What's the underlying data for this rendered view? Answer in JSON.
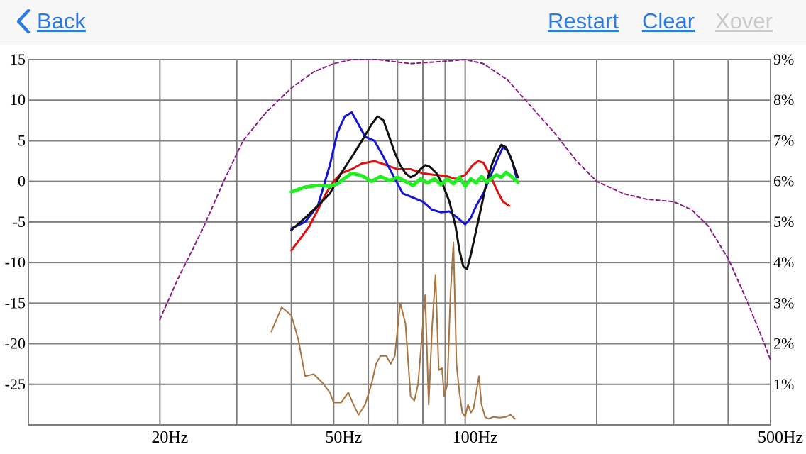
{
  "colors": {
    "nav_link": "#2a7ae2",
    "nav_disabled": "#c9c9c9",
    "grid": "#7f7f7f",
    "series_blue": "#1414d2",
    "series_black": "#111111",
    "series_red": "#e01010",
    "series_green": "#22ee22",
    "series_brown": "#a8733f",
    "series_purple": "#8a1a8a"
  },
  "navbar": {
    "back_label": "Back",
    "back_icon": "chevron-left-icon",
    "restart_label": "Restart",
    "clear_label": "Clear",
    "xover_label": "Xover"
  },
  "chart_data": {
    "type": "line",
    "x_scale": "log",
    "xlim": [
      10,
      500
    ],
    "x_ticks": [
      {
        "value": 20,
        "label": "20Hz"
      },
      {
        "value": 50,
        "label": "50Hz"
      },
      {
        "value": 100,
        "label": "100Hz"
      },
      {
        "value": 500,
        "label": "500Hz"
      }
    ],
    "x_gridlines": [
      20,
      30,
      40,
      50,
      60,
      70,
      80,
      90,
      100,
      200,
      300,
      400,
      500
    ],
    "y_left": {
      "ylim": [
        -30,
        15
      ],
      "ticks": [
        15,
        10,
        5,
        0,
        -5,
        -10,
        -15,
        -20,
        -25
      ]
    },
    "y_right": {
      "ylim": [
        0,
        9
      ],
      "ticks": [
        9,
        8,
        7,
        6,
        5,
        4,
        3,
        2,
        1
      ],
      "tick_labels": [
        "9%",
        "8%",
        "7%",
        "6%",
        "5%",
        "4%",
        "3%",
        "2%",
        "1%"
      ]
    },
    "grid": true,
    "series": [
      {
        "axis": "left",
        "color": "#8a1a8a",
        "dashed": true,
        "width": 2,
        "points": [
          [
            20,
            -17
          ],
          [
            22,
            -12
          ],
          [
            25,
            -6
          ],
          [
            28,
            0
          ],
          [
            31,
            5
          ],
          [
            35,
            8.5
          ],
          [
            40,
            11.5
          ],
          [
            45,
            13.5
          ],
          [
            50,
            14.5
          ],
          [
            55,
            15
          ],
          [
            63,
            15
          ],
          [
            75,
            14.5
          ],
          [
            90,
            14.8
          ],
          [
            100,
            15
          ],
          [
            110,
            14.5
          ],
          [
            125,
            12.5
          ],
          [
            140,
            9.5
          ],
          [
            160,
            6
          ],
          [
            180,
            2.5
          ],
          [
            200,
            0
          ],
          [
            230,
            -1.5
          ],
          [
            260,
            -2.2
          ],
          [
            300,
            -2.5
          ],
          [
            330,
            -3.5
          ],
          [
            360,
            -5.5
          ],
          [
            400,
            -9.5
          ],
          [
            440,
            -14.5
          ],
          [
            480,
            -19.5
          ],
          [
            500,
            -22
          ]
        ]
      },
      {
        "axis": "right",
        "color": "#a8733f",
        "dashed": false,
        "width": 2,
        "points": [
          [
            36,
            2.3
          ],
          [
            38,
            2.9
          ],
          [
            40,
            2.7
          ],
          [
            41.5,
            2.1
          ],
          [
            43,
            1.2
          ],
          [
            45,
            1.25
          ],
          [
            47,
            1.05
          ],
          [
            49,
            0.8
          ],
          [
            50,
            0.55
          ],
          [
            52,
            0.55
          ],
          [
            54,
            0.8
          ],
          [
            55.5,
            0.5
          ],
          [
            57,
            0.25
          ],
          [
            59,
            0.5
          ],
          [
            61,
            1.0
          ],
          [
            62.5,
            1.5
          ],
          [
            64,
            1.7
          ],
          [
            66,
            1.7
          ],
          [
            67.5,
            1.5
          ],
          [
            69,
            1.7
          ],
          [
            71,
            3.0
          ],
          [
            73,
            2.5
          ],
          [
            75,
            0.7
          ],
          [
            76.5,
            0.6
          ],
          [
            78,
            1.0
          ],
          [
            79.5,
            2.1
          ],
          [
            81,
            3.2
          ],
          [
            82.5,
            0.5
          ],
          [
            84,
            2.4
          ],
          [
            85.5,
            3.7
          ],
          [
            87,
            1.35
          ],
          [
            88.5,
            1.4
          ],
          [
            89.5,
            0.7
          ],
          [
            91,
            1.0
          ],
          [
            92.5,
            3.2
          ],
          [
            94,
            4.5
          ],
          [
            95.5,
            1.5
          ],
          [
            97,
            0.8
          ],
          [
            98.5,
            0.3
          ],
          [
            100,
            0.2
          ],
          [
            101.5,
            0.5
          ],
          [
            103,
            0.3
          ],
          [
            104.5,
            0.4
          ],
          [
            106,
            0.8
          ],
          [
            107.5,
            1.2
          ],
          [
            109,
            0.5
          ],
          [
            111,
            0.2
          ],
          [
            113,
            0.15
          ],
          [
            116,
            0.2
          ],
          [
            120,
            0.18
          ],
          [
            124,
            0.2
          ],
          [
            127,
            0.25
          ],
          [
            130,
            0.15
          ]
        ]
      },
      {
        "axis": "left",
        "color": "#e01010",
        "dashed": false,
        "width": 3,
        "points": [
          [
            40,
            -8.5
          ],
          [
            42,
            -7
          ],
          [
            44,
            -5.5
          ],
          [
            46,
            -3.5
          ],
          [
            48,
            -1.5
          ],
          [
            50,
            0
          ],
          [
            52,
            1
          ],
          [
            55,
            1.5
          ],
          [
            58,
            2.2
          ],
          [
            62,
            2.5
          ],
          [
            66,
            2
          ],
          [
            70,
            1.5
          ],
          [
            75,
            1.5
          ],
          [
            80,
            1
          ],
          [
            85,
            0.8
          ],
          [
            90,
            0.7
          ],
          [
            95,
            0.3
          ],
          [
            100,
            0.8
          ],
          [
            104,
            2
          ],
          [
            107,
            2.5
          ],
          [
            110,
            2.3
          ],
          [
            114,
            0.8
          ],
          [
            118,
            -1
          ],
          [
            122,
            -2.5
          ],
          [
            126,
            -3
          ]
        ]
      },
      {
        "axis": "left",
        "color": "#1414d2",
        "dashed": false,
        "width": 3,
        "points": [
          [
            40,
            -5.8
          ],
          [
            43,
            -5
          ],
          [
            46,
            -3
          ],
          [
            49,
            2
          ],
          [
            51,
            6
          ],
          [
            53,
            8
          ],
          [
            55,
            8.5
          ],
          [
            57,
            7
          ],
          [
            59,
            5.5
          ],
          [
            62,
            5
          ],
          [
            65,
            3
          ],
          [
            68,
            1
          ],
          [
            72,
            -1.5
          ],
          [
            76,
            -2
          ],
          [
            80,
            -2.5
          ],
          [
            84,
            -3.5
          ],
          [
            88,
            -3.8
          ],
          [
            92,
            -3.7
          ],
          [
            96,
            -4.5
          ],
          [
            100,
            -5.3
          ],
          [
            103,
            -4.5
          ],
          [
            106,
            -3
          ],
          [
            110,
            -1.5
          ],
          [
            114,
            0.5
          ],
          [
            118,
            2.5
          ],
          [
            122,
            4.2
          ],
          [
            125,
            3.8
          ],
          [
            128,
            2.5
          ],
          [
            131,
            0.5
          ]
        ]
      },
      {
        "axis": "left",
        "color": "#111111",
        "dashed": false,
        "width": 3,
        "points": [
          [
            40,
            -6
          ],
          [
            43,
            -4.5
          ],
          [
            46,
            -3
          ],
          [
            49,
            -1.5
          ],
          [
            52,
            1
          ],
          [
            55,
            3
          ],
          [
            58,
            5
          ],
          [
            61,
            7
          ],
          [
            63,
            8
          ],
          [
            65,
            7.5
          ],
          [
            67,
            5.5
          ],
          [
            69,
            3.5
          ],
          [
            71,
            2
          ],
          [
            73,
            1
          ],
          [
            75,
            0.5
          ],
          [
            77,
            0.8
          ],
          [
            79,
            1.5
          ],
          [
            81,
            2
          ],
          [
            83,
            1.8
          ],
          [
            86,
            1
          ],
          [
            89,
            -0.5
          ],
          [
            92,
            -2.5
          ],
          [
            95,
            -5.5
          ],
          [
            97,
            -8.5
          ],
          [
            99,
            -10.5
          ],
          [
            101,
            -10.8
          ],
          [
            103,
            -9
          ],
          [
            106,
            -6
          ],
          [
            109,
            -3
          ],
          [
            112,
            0
          ],
          [
            115,
            2
          ],
          [
            118,
            3.5
          ],
          [
            121,
            4.5
          ],
          [
            124,
            4.2
          ],
          [
            127,
            3
          ],
          [
            130,
            1.5
          ],
          [
            132,
            0.5
          ]
        ]
      },
      {
        "axis": "left",
        "color": "#22ee22",
        "dashed": false,
        "width": 5,
        "points": [
          [
            40,
            -1.3
          ],
          [
            43,
            -0.7
          ],
          [
            46,
            -0.5
          ],
          [
            49,
            -0.6
          ],
          [
            51,
            -0.3
          ],
          [
            53,
            0.4
          ],
          [
            55,
            1
          ],
          [
            58,
            0.7
          ],
          [
            61,
            0
          ],
          [
            64,
            0.6
          ],
          [
            67,
            0.1
          ],
          [
            70,
            0.5
          ],
          [
            73,
            0
          ],
          [
            76,
            -0.5
          ],
          [
            79,
            0.3
          ],
          [
            82,
            -0.2
          ],
          [
            85,
            0.3
          ],
          [
            88,
            -0.4
          ],
          [
            91,
            0.3
          ],
          [
            94,
            -0.3
          ],
          [
            97,
            0.5
          ],
          [
            100,
            -0.6
          ],
          [
            103,
            0.3
          ],
          [
            106,
            -0.2
          ],
          [
            109,
            0.6
          ],
          [
            112,
            -0.1
          ],
          [
            115,
            0.4
          ],
          [
            118,
            0.8
          ],
          [
            121,
            0.5
          ],
          [
            124,
            1.1
          ],
          [
            127,
            0.7
          ],
          [
            130,
            0.2
          ],
          [
            132,
            -0.1
          ]
        ]
      }
    ]
  }
}
